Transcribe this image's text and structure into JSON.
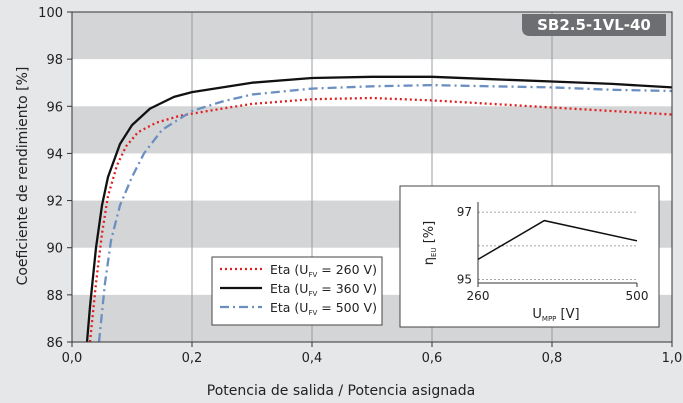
{
  "chart_data": {
    "type": "line",
    "badge": "SB2.5-1VL-40",
    "xlabel": "Potencia de salida / Potencia asignada",
    "ylabel": "Coeficiente de rendimiento [%]",
    "xlim": [
      0,
      1
    ],
    "ylim": [
      86,
      100
    ],
    "x_ticks": [
      "0,0",
      "0,2",
      "0,4",
      "0,6",
      "0,8",
      "1,0"
    ],
    "y_ticks": [
      "86",
      "88",
      "90",
      "92",
      "94",
      "96",
      "98",
      "100"
    ],
    "series": [
      {
        "name": "Eta (U",
        "sub": "FV",
        "suffix": " = 260 V)",
        "color": "#e02020",
        "style": "dotted",
        "points": [
          [
            0.03,
            86
          ],
          [
            0.04,
            88.5
          ],
          [
            0.05,
            90.6
          ],
          [
            0.06,
            92.2
          ],
          [
            0.075,
            93.5
          ],
          [
            0.09,
            94.3
          ],
          [
            0.11,
            94.9
          ],
          [
            0.14,
            95.3
          ],
          [
            0.18,
            95.6
          ],
          [
            0.25,
            95.9
          ],
          [
            0.3,
            96.1
          ],
          [
            0.4,
            96.3
          ],
          [
            0.5,
            96.35
          ],
          [
            0.6,
            96.25
          ],
          [
            0.7,
            96.1
          ],
          [
            0.8,
            95.95
          ],
          [
            0.9,
            95.8
          ],
          [
            1.0,
            95.65
          ]
        ]
      },
      {
        "name": "Eta (U",
        "sub": "FV",
        "suffix": " = 360 V)",
        "color": "#111111",
        "style": "solid",
        "points": [
          [
            0.025,
            86
          ],
          [
            0.03,
            87.5
          ],
          [
            0.04,
            90
          ],
          [
            0.05,
            91.8
          ],
          [
            0.06,
            93
          ],
          [
            0.08,
            94.4
          ],
          [
            0.1,
            95.2
          ],
          [
            0.13,
            95.9
          ],
          [
            0.17,
            96.4
          ],
          [
            0.2,
            96.6
          ],
          [
            0.3,
            97
          ],
          [
            0.4,
            97.2
          ],
          [
            0.5,
            97.25
          ],
          [
            0.6,
            97.25
          ],
          [
            0.7,
            97.15
          ],
          [
            0.8,
            97.05
          ],
          [
            0.9,
            96.95
          ],
          [
            1.0,
            96.8
          ]
        ]
      },
      {
        "name": "Eta (U",
        "sub": "FV",
        "suffix": " = 500 V)",
        "color": "#6a8fc0",
        "style": "dashdot",
        "points": [
          [
            0.045,
            86
          ],
          [
            0.055,
            88.5
          ],
          [
            0.065,
            90.3
          ],
          [
            0.08,
            91.8
          ],
          [
            0.1,
            93
          ],
          [
            0.12,
            94
          ],
          [
            0.15,
            95
          ],
          [
            0.2,
            95.8
          ],
          [
            0.25,
            96.2
          ],
          [
            0.3,
            96.5
          ],
          [
            0.4,
            96.75
          ],
          [
            0.5,
            96.85
          ],
          [
            0.6,
            96.9
          ],
          [
            0.7,
            96.85
          ],
          [
            0.8,
            96.8
          ],
          [
            0.9,
            96.7
          ],
          [
            1.0,
            96.65
          ]
        ]
      }
    ],
    "inset": {
      "xlabel": "U",
      "xlabel_sub": "MPP",
      "xlabel_unit": " [V]",
      "ylabel": "η",
      "ylabel_sub": "EU",
      "ylabel_unit": " [%]",
      "x_ticks": [
        "260",
        "500"
      ],
      "y_ticks": [
        "97",
        "95"
      ],
      "xlim": [
        260,
        500
      ],
      "ylim": [
        94.9,
        97.3
      ],
      "points": [
        [
          260,
          95.6
        ],
        [
          360,
          96.75
        ],
        [
          500,
          96.15
        ]
      ]
    }
  }
}
